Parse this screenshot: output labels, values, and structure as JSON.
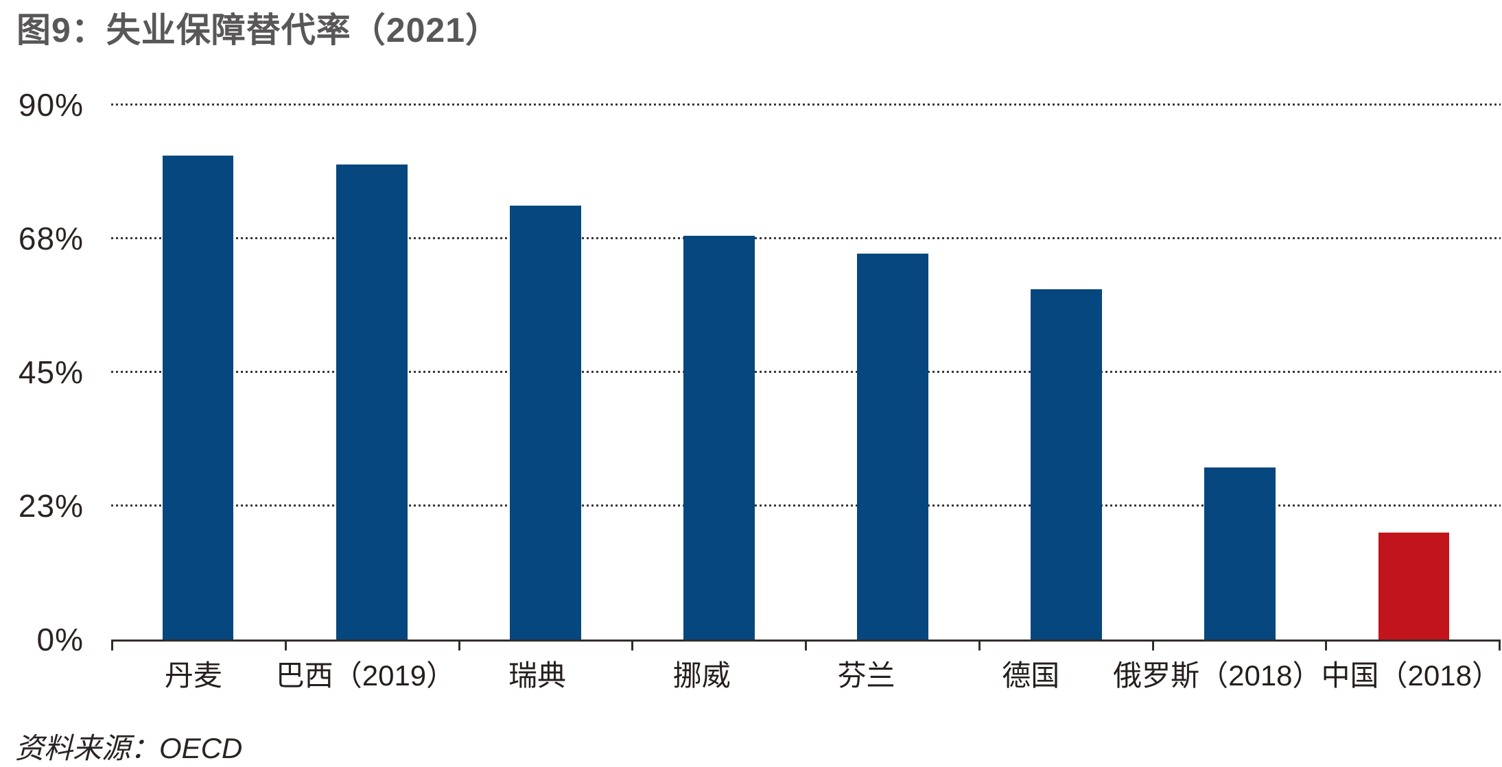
{
  "title": "图9：失业保障替代率（2021）",
  "source": "资料来源：OECD",
  "colors": {
    "bar_blue": "#05477e",
    "bar_red": "#c1141c",
    "title_gray": "#595757",
    "text_dark": "#2b2423",
    "gridline": "#3a3434",
    "axis": "#332d2d"
  },
  "chart_data": {
    "type": "bar",
    "title": "图9：失业保障替代率（2021）",
    "categories": [
      "丹麦",
      "巴西（2019）",
      "瑞典",
      "挪威",
      "芬兰",
      "德国",
      "俄罗斯（2018）",
      "中国（2018）"
    ],
    "values": [
      81.5,
      80,
      73,
      68,
      65,
      59,
      29,
      18
    ],
    "unit": "%",
    "bar_colors": [
      "#05477e",
      "#05477e",
      "#05477e",
      "#05477e",
      "#05477e",
      "#05477e",
      "#05477e",
      "#c1141c"
    ],
    "xlabel": "",
    "ylabel": "",
    "ylim": [
      0,
      90
    ],
    "yticks": [
      {
        "label": "90%",
        "value": 90
      },
      {
        "label": "68%",
        "value": 67.5
      },
      {
        "label": "45%",
        "value": 45
      },
      {
        "label": "23%",
        "value": 22.5
      },
      {
        "label": "0%",
        "value": 0
      }
    ],
    "grid": "horizontal-dotted",
    "legend": "none",
    "source": "资料来源：OECD"
  }
}
